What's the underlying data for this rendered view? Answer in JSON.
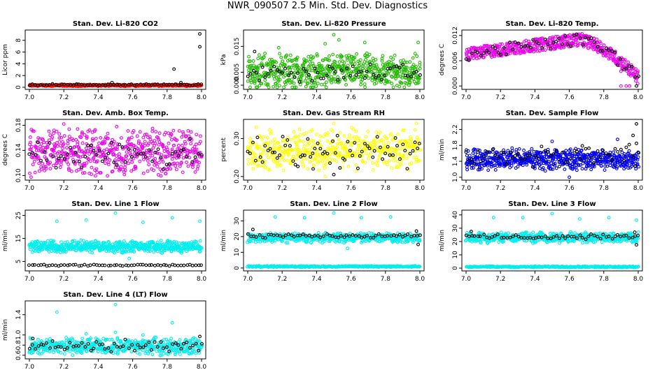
{
  "page_title": "NWR_090507  2.5 Min. Std. Dev. Diagnostics",
  "chart_data": [
    {
      "type": "scatter",
      "title": "Stan. Dev. Li-820 CO2",
      "xlabel": "",
      "ylabel": "Licor ppm",
      "xlim": [
        7.0,
        8.0
      ],
      "xticks": [
        "7.0",
        "7.2",
        "7.4",
        "7.6",
        "7.8",
        "8.0"
      ],
      "ylim": [
        0,
        9.4
      ],
      "yticks": [
        "0",
        "2",
        "4",
        "6",
        "8"
      ],
      "grid": false,
      "series": [
        {
          "color": "#ff0000",
          "marker": "open-circle",
          "count": 420,
          "band_low": 0.2,
          "band_high": 0.45,
          "outliers": []
        },
        {
          "color": "#000000",
          "marker": "open-circle",
          "count": 60,
          "band_low": 0.3,
          "band_high": 0.55,
          "outliers": [
            [
              7.48,
              0.8
            ],
            [
              7.88,
              0.8
            ],
            [
              7.84,
              3.1
            ],
            [
              7.99,
              6.9
            ],
            [
              7.99,
              9.1
            ]
          ]
        }
      ]
    },
    {
      "type": "scatter",
      "title": "Stan. Dev. Li-820 Pressure",
      "xlabel": "",
      "ylabel": "kPa",
      "xlim": [
        7.0,
        8.0
      ],
      "xticks": [
        "7.0",
        "7.2",
        "7.4",
        "7.6",
        "7.8",
        "8.0"
      ],
      "ylim": [
        -0.0008,
        0.0205
      ],
      "yticks": [
        "0.000",
        "0.005",
        "0.015"
      ],
      "grid": false,
      "series": [
        {
          "color": "#22bb00",
          "marker": "open-circle",
          "count": 620,
          "band_low": 0.0,
          "band_high": 0.0105,
          "outliers": [
            [
              7.5,
              0.0195
            ],
            [
              7.53,
              0.0175
            ],
            [
              7.68,
              0.0165
            ],
            [
              7.99,
              0.0165
            ],
            [
              7.18,
              0.0145
            ],
            [
              7.45,
              0.016
            ]
          ]
        },
        {
          "color": "#000000",
          "marker": "open-circle",
          "count": 60,
          "band_low": 0.002,
          "band_high": 0.0075,
          "outliers": [
            [
              7.04,
              0.013
            ]
          ]
        }
      ]
    },
    {
      "type": "scatter",
      "title": "Stan. Dev. Li-820 Temp.",
      "xlabel": "",
      "ylabel": "degrees C",
      "xlim": [
        7.0,
        8.0
      ],
      "xticks": [
        "7.0",
        "7.2",
        "7.4",
        "7.6",
        "7.8",
        "8.0"
      ],
      "ylim": [
        -0.0003,
        0.0128
      ],
      "yticks": [
        "0.000",
        "0.006",
        "0.012"
      ],
      "grid": false,
      "series": [
        {
          "color": "#ee00ee",
          "marker": "open-circle",
          "count": 520,
          "profile": "arc",
          "outliers": [
            [
              7.9,
              0.0
            ],
            [
              7.93,
              0.0
            ],
            [
              7.95,
              0.0
            ],
            [
              7.9,
              0.0035
            ]
          ]
        },
        {
          "color": "#000000",
          "marker": "open-circle",
          "count": 60,
          "profile": "arc",
          "outliers": [
            [
              7.99,
              0.0
            ]
          ]
        }
      ]
    },
    {
      "type": "scatter",
      "title": "Stan. Dev. Amb. Box Temp.",
      "xlabel": "",
      "ylabel": "degrees C",
      "xlim": [
        7.0,
        8.0
      ],
      "xticks": [
        "7.0",
        "7.2",
        "7.4",
        "7.6",
        "7.8",
        "8.0"
      ],
      "ylim": [
        0.096,
        0.186
      ],
      "yticks": [
        "0.10",
        "0.14",
        "0.18"
      ],
      "grid": false,
      "series": [
        {
          "color": "#ee00ee",
          "marker": "open-circle",
          "count": 560,
          "band_low": 0.11,
          "band_high": 0.165,
          "outliers": [
            [
              7.2,
              0.182
            ],
            [
              7.28,
              0.174
            ],
            [
              7.31,
              0.104
            ],
            [
              7.36,
              0.102
            ]
          ]
        },
        {
          "color": "#000000",
          "marker": "open-circle",
          "count": 60,
          "band_low": 0.115,
          "band_high": 0.15,
          "outliers": []
        }
      ]
    },
    {
      "type": "scatter",
      "title": "Stan. Dev. Gas Stream RH",
      "xlabel": "",
      "ylabel": "percent",
      "xlim": [
        7.0,
        8.0
      ],
      "xticks": [
        "7.0",
        "7.2",
        "7.4",
        "7.6",
        "7.8",
        "8.0"
      ],
      "ylim": [
        0.196,
        0.345
      ],
      "yticks": [
        "0.20",
        "0.30"
      ],
      "grid": false,
      "series": [
        {
          "color": "#ffff00",
          "marker": "open-circle",
          "count": 520,
          "band_low": 0.23,
          "band_high": 0.31,
          "outliers": [
            [
              7.5,
              0.34
            ],
            [
              7.98,
              0.34
            ],
            [
              7.05,
              0.33
            ],
            [
              7.45,
              0.2
            ]
          ]
        },
        {
          "color": "#000000",
          "marker": "open-circle",
          "count": 70,
          "band_low": 0.23,
          "band_high": 0.3,
          "outliers": [
            [
              7.5,
              0.205
            ],
            [
              7.38,
              0.22
            ]
          ]
        }
      ]
    },
    {
      "type": "scatter",
      "title": "Stan. Dev. Sample Flow",
      "xlabel": "",
      "ylabel": "ml/min",
      "xlim": [
        7.0,
        8.0
      ],
      "xticks": [
        "7.0",
        "7.2",
        "7.4",
        "7.6",
        "7.8",
        "8.0"
      ],
      "ylim": [
        0.98,
        2.4
      ],
      "yticks": [
        "1.0",
        "1.4",
        "1.8",
        "2.2"
      ],
      "grid": false,
      "series": [
        {
          "color": "#0000ee",
          "marker": "open-circle",
          "count": 620,
          "band_low": 1.25,
          "band_high": 1.65,
          "outliers": [
            [
              7.6,
              1.0
            ],
            [
              7.5,
              1.9
            ],
            [
              7.88,
              1.95
            ]
          ]
        },
        {
          "color": "#000000",
          "marker": "open-circle",
          "count": 60,
          "band_low": 1.35,
          "band_high": 1.75,
          "outliers": [
            [
              7.99,
              2.34
            ],
            [
              7.97,
              2.05
            ],
            [
              7.99,
              1.85
            ]
          ]
        }
      ]
    },
    {
      "type": "scatter",
      "title": "Stan. Dev. Line 1 Flow",
      "xlabel": "",
      "ylabel": "ml/min",
      "xlim": [
        7.0,
        8.0
      ],
      "xticks": [
        "7.0",
        "7.2",
        "7.4",
        "7.6",
        "7.8",
        "8.0"
      ],
      "ylim": [
        1.8,
        26.4
      ],
      "yticks": [
        "5",
        "15",
        "25"
      ],
      "grid": false,
      "series": [
        {
          "color": "#00eeee",
          "marker": "open-circle",
          "count": 600,
          "band_low": 9.5,
          "band_high": 13.5,
          "outliers": [
            [
              7.16,
              22.5
            ],
            [
              7.33,
              23.0
            ],
            [
              7.5,
              26.0
            ],
            [
              7.66,
              22.0
            ],
            [
              7.83,
              24.0
            ],
            [
              7.99,
              22.5
            ],
            [
              7.58,
              6.3
            ]
          ]
        },
        {
          "color": "#000000",
          "marker": "open-circle",
          "count": 60,
          "band_low": 3.1,
          "band_high": 3.6,
          "outliers": []
        }
      ]
    },
    {
      "type": "scatter",
      "title": "Stan. Dev. Line 2 Flow",
      "xlabel": "",
      "ylabel": "ml/min",
      "xlim": [
        7.0,
        8.0
      ],
      "xticks": [
        "7.0",
        "7.2",
        "7.4",
        "7.6",
        "7.8",
        "8.0"
      ],
      "ylim": [
        -0.5,
        35.5
      ],
      "yticks": [
        "0",
        "10",
        "20",
        "30"
      ],
      "grid": false,
      "series": [
        {
          "color": "#00eeee",
          "marker": "open-circle",
          "count": 520,
          "band_low": 17.0,
          "band_high": 21.5,
          "outliers": [
            [
              7.16,
              32.5
            ],
            [
              7.33,
              32.0
            ],
            [
              7.5,
              35.0
            ],
            [
              7.66,
              32.0
            ],
            [
              7.83,
              32.5
            ],
            [
              7.58,
              12.5
            ]
          ]
        },
        {
          "color": "#00eeee",
          "marker": "open-circle",
          "count": 300,
          "band_low": 0.6,
          "band_high": 1.3,
          "outliers": []
        },
        {
          "color": "#000000",
          "marker": "open-circle",
          "count": 60,
          "band_low": 19.5,
          "band_high": 21.5,
          "outliers": [
            [
              7.03,
              24.5
            ],
            [
              7.99,
              15.0
            ],
            [
              7.98,
              23.5
            ]
          ]
        }
      ]
    },
    {
      "type": "scatter",
      "title": "Stan. Dev. Line 3 Flow",
      "xlabel": "",
      "ylabel": "ml/min",
      "xlim": [
        7.0,
        8.0
      ],
      "xticks": [
        "7.0",
        "7.2",
        "7.4",
        "7.6",
        "7.8",
        "8.0"
      ],
      "ylim": [
        -0.5,
        42.0
      ],
      "yticks": [
        "0",
        "10",
        "20",
        "30",
        "40"
      ],
      "grid": false,
      "series": [
        {
          "color": "#00eeee",
          "marker": "open-circle",
          "count": 520,
          "band_low": 20.0,
          "band_high": 26.0,
          "outliers": [
            [
              7.16,
              38.0
            ],
            [
              7.33,
              38.0
            ],
            [
              7.5,
              41.0
            ],
            [
              7.66,
              37.0
            ],
            [
              7.83,
              38.0
            ],
            [
              7.99,
              36.0
            ]
          ]
        },
        {
          "color": "#00eeee",
          "marker": "open-circle",
          "count": 300,
          "band_low": 0.6,
          "band_high": 1.4,
          "outliers": []
        },
        {
          "color": "#000000",
          "marker": "open-circle",
          "count": 60,
          "band_low": 22.0,
          "band_high": 25.0,
          "outliers": [
            [
              7.03,
              27.5
            ],
            [
              7.99,
              17.5
            ],
            [
              7.98,
              27.0
            ]
          ]
        }
      ]
    },
    {
      "type": "scatter",
      "title": "Stan. Dev. Line 4 (LT) Flow",
      "xlabel": "",
      "ylabel": "ml/min",
      "xlim": [
        7.0,
        8.0
      ],
      "xticks": [
        "7.0",
        "7.2",
        "7.4",
        "7.6",
        "7.8",
        "8.0"
      ],
      "ylim": [
        0.57,
        1.63
      ],
      "yticks": [
        "0.6",
        "0.8",
        "1.0",
        "1.4"
      ],
      "grid": false,
      "series": [
        {
          "color": "#00eeee",
          "marker": "open-circle",
          "count": 520,
          "band_low": 0.65,
          "band_high": 0.9,
          "outliers": [
            [
              7.5,
              1.6
            ],
            [
              7.16,
              1.45
            ],
            [
              7.83,
              1.24
            ],
            [
              7.5,
              1.05
            ],
            [
              7.33,
              1.02
            ],
            [
              7.66,
              1.0
            ]
          ]
        },
        {
          "color": "#000000",
          "marker": "open-circle",
          "count": 60,
          "band_low": 0.7,
          "band_high": 0.88,
          "outliers": [
            [
              7.99,
              0.97
            ],
            [
              7.02,
              0.93
            ]
          ]
        }
      ]
    }
  ]
}
